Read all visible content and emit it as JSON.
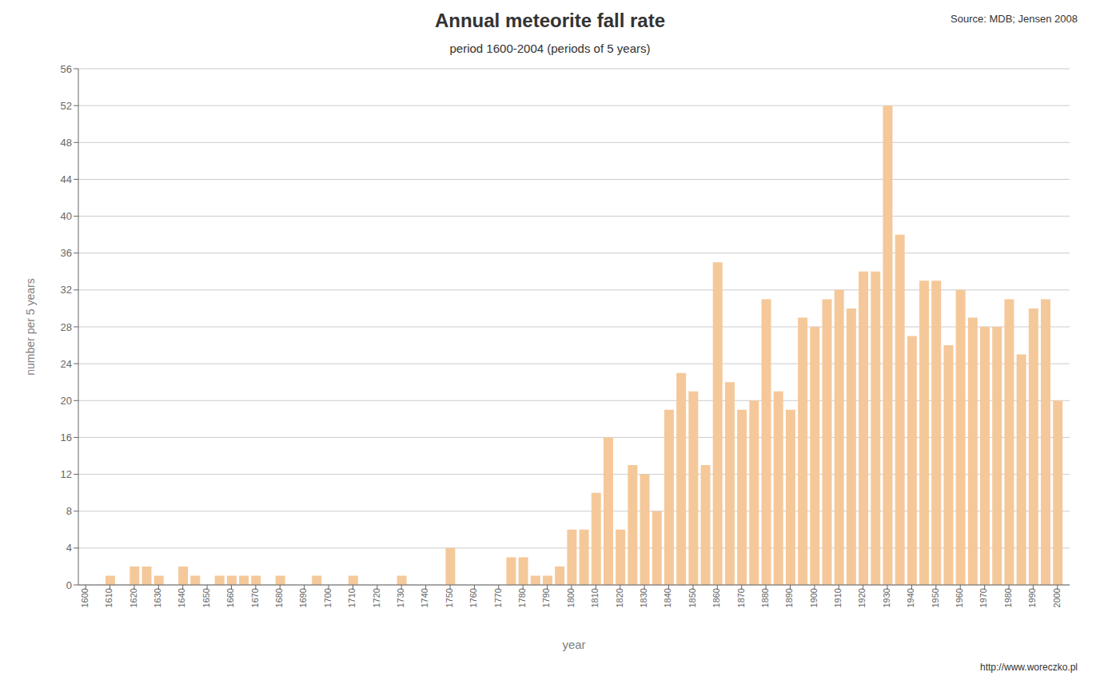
{
  "chart_data": {
    "type": "bar",
    "title": "Annual meteorite fall rate",
    "subtitle": "period 1600-2004 (periods of 5 years)",
    "x_label": "year",
    "y_label": "number per 5 years",
    "annotations": [
      "Source: MDB; Jensen 2008",
      "http://www.woreczko.pl"
    ],
    "color": "#f5c89a",
    "grid": true,
    "x": [
      1600,
      1605,
      1610,
      1615,
      1620,
      1625,
      1630,
      1635,
      1640,
      1645,
      1650,
      1655,
      1660,
      1665,
      1670,
      1675,
      1680,
      1685,
      1690,
      1695,
      1700,
      1705,
      1710,
      1715,
      1720,
      1725,
      1730,
      1735,
      1740,
      1745,
      1750,
      1755,
      1760,
      1765,
      1770,
      1775,
      1780,
      1785,
      1790,
      1795,
      1800,
      1805,
      1810,
      1815,
      1820,
      1825,
      1830,
      1835,
      1840,
      1845,
      1850,
      1855,
      1860,
      1865,
      1870,
      1875,
      1880,
      1885,
      1890,
      1895,
      1900,
      1905,
      1910,
      1915,
      1920,
      1925,
      1930,
      1935,
      1940,
      1945,
      1950,
      1955,
      1960,
      1965,
      1970,
      1975,
      1980,
      1985,
      1990,
      1995,
      2000
    ],
    "values": [
      0,
      0,
      1,
      0,
      2,
      2,
      1,
      0,
      2,
      1,
      0,
      1,
      1,
      1,
      1,
      0,
      1,
      0,
      0,
      1,
      0,
      0,
      1,
      0,
      0,
      0,
      1,
      0,
      0,
      0,
      4,
      0,
      0,
      0,
      0,
      3,
      3,
      1,
      1,
      2,
      6,
      6,
      10,
      16,
      6,
      13,
      12,
      8,
      19,
      23,
      21,
      13,
      35,
      22,
      19,
      20,
      31,
      21,
      19,
      29,
      28,
      31,
      32,
      30,
      34,
      34,
      52,
      38,
      27,
      33,
      33,
      26,
      32,
      29,
      28,
      28,
      31,
      25,
      30,
      31,
      20
    ],
    "xlim": [
      1597,
      2005
    ],
    "xticks": [
      1600,
      1610,
      1620,
      1630,
      1640,
      1650,
      1660,
      1670,
      1680,
      1690,
      1700,
      1710,
      1720,
      1730,
      1740,
      1750,
      1760,
      1770,
      1780,
      1790,
      1800,
      1810,
      1820,
      1830,
      1840,
      1850,
      1860,
      1870,
      1880,
      1890,
      1900,
      1910,
      1920,
      1930,
      1940,
      1950,
      1960,
      1970,
      1980,
      1990,
      2000
    ],
    "ylim": [
      0,
      56
    ],
    "yticks": [
      0,
      4,
      8,
      12,
      16,
      20,
      24,
      28,
      32,
      36,
      40,
      44,
      48,
      52,
      56
    ]
  }
}
